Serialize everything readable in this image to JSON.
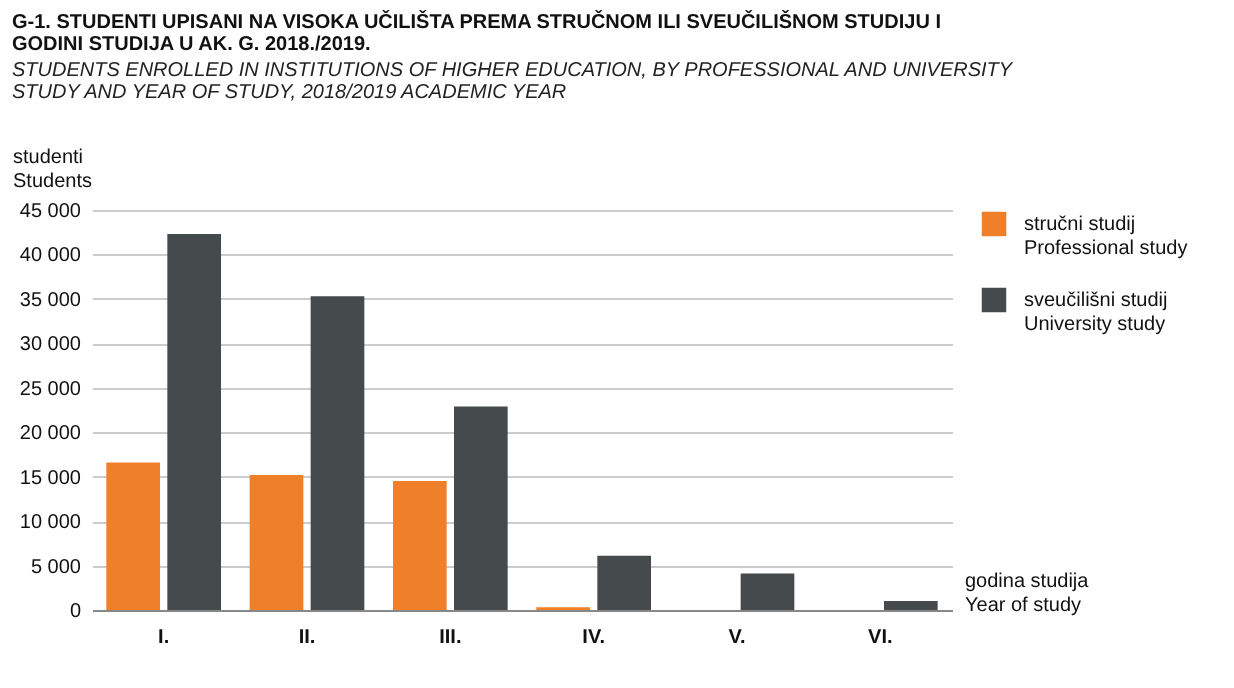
{
  "chart_data": {
    "type": "bar",
    "title": "G-1. STUDENTI UPISANI NA VISOKA UČILIŠTA PREMA STRUČNOM ILI SVEUČILIŠNOM STUDIJU I GODINI STUDIJA U AK. G. 2018./2019.",
    "subtitle": "STUDENTS ENROLLED IN INSTITUTIONS OF HIGHER EDUCATION, BY PROFESSIONAL AND UNIVERSITY STUDY AND YEAR OF STUDY, 2018/2019 ACADEMIC YEAR",
    "xlabel": "godina studija\nYear of study",
    "ylabel": "studenti\nStudents",
    "categories": [
      "I.",
      "II.",
      "III.",
      "IV.",
      "V.",
      "VI."
    ],
    "series": [
      {
        "name": "stručni studij\nProfessional study",
        "color": "#f07f2a",
        "values": [
          16600,
          15200,
          14500,
          300,
          null,
          null
        ]
      },
      {
        "name": "sveučilišni studij\nUniversity study",
        "color": "#454a4c",
        "values": [
          42300,
          35300,
          22900,
          6100,
          4100,
          1000
        ]
      }
    ],
    "ylim": [
      0,
      45000
    ],
    "yticks": [
      0,
      5000,
      10000,
      15000,
      20000,
      25000,
      30000,
      35000,
      40000,
      45000
    ],
    "grid": "y",
    "legend": "right"
  }
}
